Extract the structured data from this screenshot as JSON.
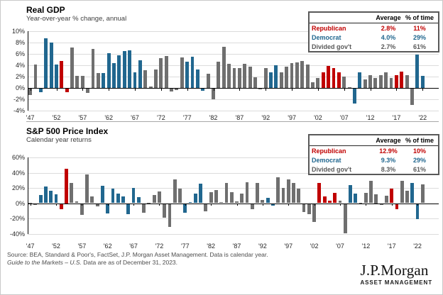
{
  "colors": {
    "republican": "#c00000",
    "democrat": "#21678f",
    "divided": "#6f6f6f",
    "gridline": "#dcdcdc",
    "axis": "#000000",
    "divided_text": "#595959"
  },
  "chart_data": [
    {
      "type": "bar",
      "title": "Real GDP",
      "subtitle": "Year-over-year % change, annual",
      "start_year": 1947,
      "end_year": 2022,
      "ylim": [
        -4,
        10
      ],
      "yticks": [
        10,
        8,
        6,
        4,
        2,
        0,
        -2,
        -4
      ],
      "xticks": [
        {
          "label": "'47",
          "year": 1947
        },
        {
          "label": "'52",
          "year": 1952
        },
        {
          "label": "'57",
          "year": 1957
        },
        {
          "label": "'62",
          "year": 1962
        },
        {
          "label": "'67",
          "year": 1967
        },
        {
          "label": "'72",
          "year": 1972
        },
        {
          "label": "'77",
          "year": 1977
        },
        {
          "label": "'82",
          "year": 1982
        },
        {
          "label": "'87",
          "year": 1987
        },
        {
          "label": "'92",
          "year": 1992
        },
        {
          "label": "'97",
          "year": 1997
        },
        {
          "label": "'02",
          "year": 2002
        },
        {
          "label": "'07",
          "year": 2007
        },
        {
          "label": "'12",
          "year": 2012
        },
        {
          "label": "'17",
          "year": 2017
        },
        {
          "label": "'22",
          "year": 2022
        }
      ],
      "values": [
        -1.1,
        4.1,
        -0.6,
        8.7,
        8.0,
        4.1,
        4.7,
        -0.6,
        7.1,
        2.1,
        2.1,
        -0.7,
        6.9,
        2.6,
        2.6,
        6.1,
        4.4,
        5.8,
        6.5,
        6.6,
        2.7,
        4.9,
        3.1,
        0.2,
        3.3,
        5.3,
        5.6,
        -0.5,
        -0.2,
        5.4,
        4.6,
        5.5,
        3.2,
        -0.3,
        2.5,
        -1.8,
        4.6,
        7.2,
        4.2,
        3.5,
        3.5,
        4.2,
        3.7,
        1.9,
        -0.1,
        3.5,
        2.8,
        4.0,
        2.7,
        3.8,
        4.4,
        4.5,
        4.8,
        4.1,
        1.0,
        1.7,
        2.8,
        3.9,
        3.5,
        2.8,
        2.0,
        0.1,
        -2.6,
        2.7,
        1.5,
        2.3,
        1.8,
        2.3,
        2.7,
        1.7,
        2.2,
        2.9,
        2.3,
        -2.8,
        5.9,
        2.1
      ],
      "party": "GGDDDDRRGGGGGGDDDDDDDDGGGGGGGGDDDDGGGGGGGGGGGGDDGGGGGGGGRRRRGGDDGGGGGGRRGGDD",
      "party_legend": {
        "R": "Republican",
        "D": "Democrat",
        "G": "Divided gov't"
      }
    },
    {
      "type": "bar",
      "title": "S&P 500 Price Index",
      "subtitle": "Calendar year returns",
      "start_year": 1947,
      "end_year": 2023,
      "ylim": [
        -40,
        60
      ],
      "yticks": [
        60,
        40,
        20,
        0,
        -20,
        -40
      ],
      "xticks": [
        {
          "label": "'47",
          "year": 1947
        },
        {
          "label": "'52",
          "year": 1952
        },
        {
          "label": "'57",
          "year": 1957
        },
        {
          "label": "'62",
          "year": 1962
        },
        {
          "label": "'67",
          "year": 1967
        },
        {
          "label": "'72",
          "year": 1972
        },
        {
          "label": "'77",
          "year": 1977
        },
        {
          "label": "'82",
          "year": 1982
        },
        {
          "label": "'87",
          "year": 1987
        },
        {
          "label": "'92",
          "year": 1992
        },
        {
          "label": "'97",
          "year": 1997
        },
        {
          "label": "'02",
          "year": 2002
        },
        {
          "label": "'07",
          "year": 2007
        },
        {
          "label": "'12",
          "year": 2012
        },
        {
          "label": "'17",
          "year": 2017
        },
        {
          "label": "'22",
          "year": 2022
        }
      ],
      "values": [
        0.0,
        -0.7,
        10.3,
        21.8,
        16.5,
        11.8,
        -6.6,
        45.0,
        26.4,
        2.6,
        -14.3,
        38.1,
        8.5,
        -3.0,
        23.1,
        -11.8,
        18.9,
        13.0,
        9.1,
        -13.1,
        20.1,
        7.7,
        -11.4,
        0.1,
        10.8,
        15.6,
        -17.4,
        -29.7,
        31.5,
        19.1,
        -11.5,
        1.1,
        12.3,
        25.8,
        -9.7,
        14.8,
        17.3,
        1.4,
        26.3,
        14.6,
        2.0,
        12.4,
        27.3,
        -6.6,
        26.3,
        4.5,
        7.1,
        -1.5,
        34.1,
        20.3,
        31.0,
        26.7,
        19.5,
        -10.1,
        -13.0,
        -23.4,
        26.4,
        9.0,
        3.0,
        13.6,
        3.5,
        -38.5,
        23.5,
        12.8,
        0.0,
        13.4,
        29.6,
        11.4,
        -0.7,
        9.5,
        19.4,
        -6.2,
        28.9,
        16.3,
        26.9,
        -19.4,
        24.2
      ],
      "party": "GGDDDDRRGGGGGGDDDDDDDDGGGGGGGGDDDDGGGGGGGGGGGGDDGGGGGGGGRRRRGGDDGGGGGGRRGGDDG",
      "party_legend": {
        "R": "Republican",
        "D": "Democrat",
        "G": "Divided gov't"
      }
    }
  ],
  "gdp_table": {
    "col_average": "Average",
    "col_pct": "% of time",
    "rows": [
      {
        "label": "Republican",
        "average": "2.8%",
        "pct_time": "11%"
      },
      {
        "label": "Democrat",
        "average": "4.0%",
        "pct_time": "29%"
      },
      {
        "label": "Divided gov't",
        "average": "2.7%",
        "pct_time": "61%"
      }
    ]
  },
  "sp500_table": {
    "col_average": "Average",
    "col_pct": "% of time",
    "rows": [
      {
        "label": "Republican",
        "average": "12.9%",
        "pct_time": "10%"
      },
      {
        "label": "Democrat",
        "average": "9.3%",
        "pct_time": "29%"
      },
      {
        "label": "Divided gov't",
        "average": "8.3%",
        "pct_time": "61%"
      }
    ]
  },
  "source": {
    "line1": "Source: BEA, Standard & Poor's, FactSet, J.P. Morgan Asset Management. Data is calendar year.",
    "line2_italic": "Guide to the Markets – U.S.",
    "line2_rest": " Data are as of December 31, 2023."
  },
  "logo": {
    "brand": "J.P.Morgan",
    "sub": "ASSET MANAGEMENT"
  }
}
